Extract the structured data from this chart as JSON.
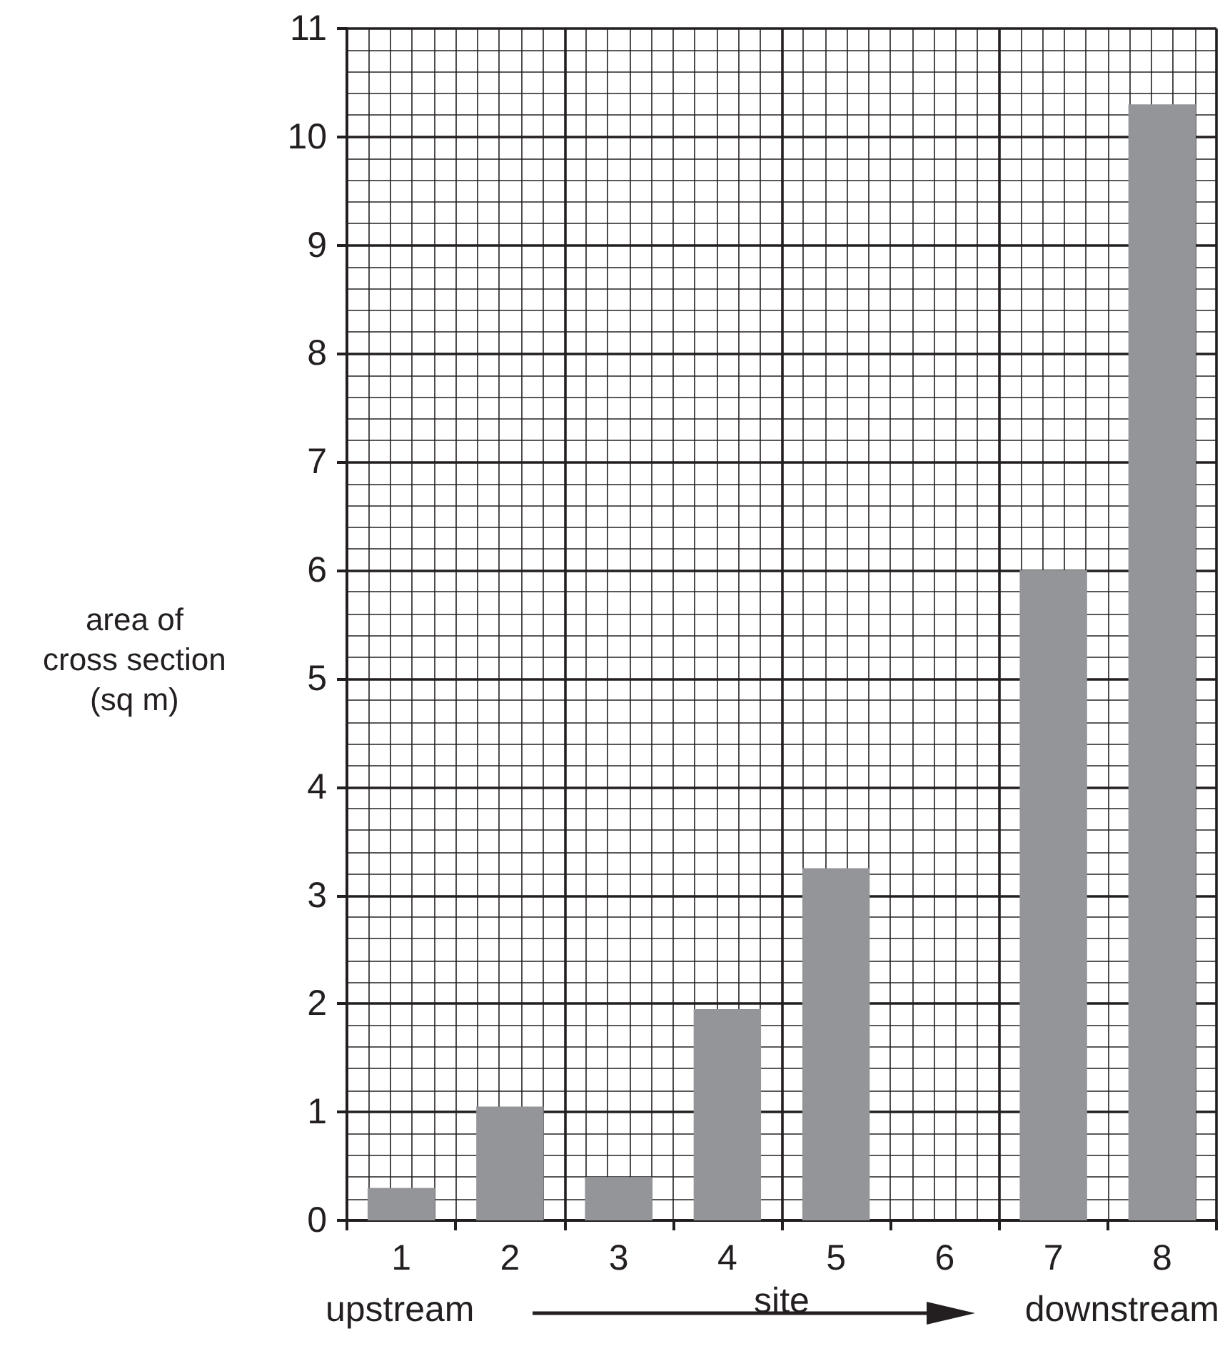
{
  "chart_data": {
    "type": "bar",
    "xlabel": "site",
    "ylabel": "area of\ncross section\n(sq m)",
    "categories": [
      "1",
      "2",
      "3",
      "4",
      "5",
      "6",
      "7",
      "8"
    ],
    "values": [
      0.3,
      1.05,
      0.4,
      1.95,
      3.25,
      null,
      6.0,
      10.3
    ],
    "color": "#939598",
    "ylim": [
      0,
      11
    ],
    "yticks": [
      0,
      1,
      2,
      3,
      4,
      5,
      6,
      7,
      8,
      9,
      10,
      11
    ],
    "grid": true,
    "annotations": [
      "upstream",
      "downstream"
    ]
  }
}
